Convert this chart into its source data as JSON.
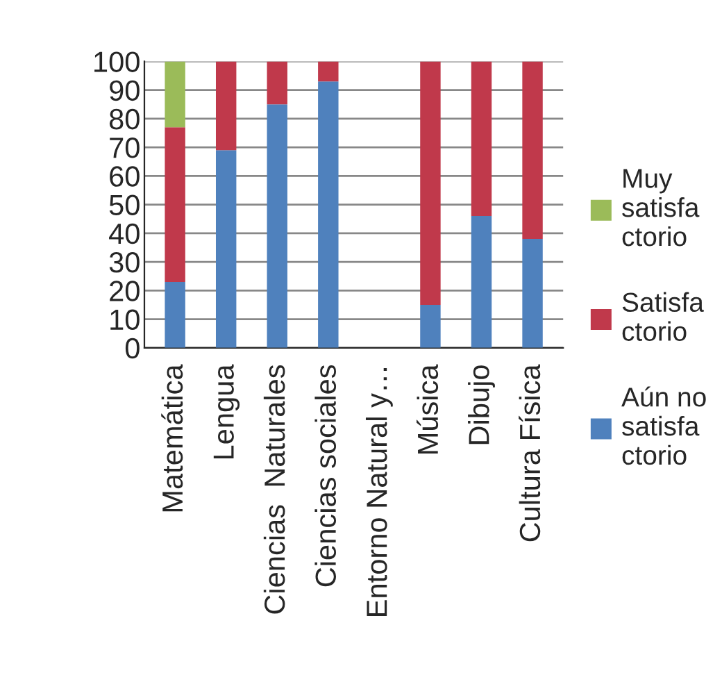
{
  "chart_data": {
    "type": "bar",
    "stacked": true,
    "categories": [
      "Matemática",
      "Lengua",
      "Ciencias  Naturales",
      "Ciencias sociales",
      "Entorno Natural y…",
      "Música",
      "Dibujo",
      "Cultura Física"
    ],
    "series": [
      {
        "name": "Aún no\nsatisfa\nctorio",
        "color": "#4f81bd",
        "values": [
          23,
          69,
          85,
          93,
          0,
          15,
          46,
          38
        ]
      },
      {
        "name": "Satisfa\nctorio",
        "color": "#c0394b",
        "values": [
          54,
          31,
          15,
          7,
          0,
          85,
          54,
          62
        ]
      },
      {
        "name": "Muy\nsatisfa\nctorio",
        "color": "#9bbb59",
        "values": [
          23,
          0,
          0,
          0,
          0,
          0,
          0,
          0
        ]
      }
    ],
    "ylim": [
      0,
      100
    ],
    "yticks": [
      0,
      10,
      20,
      30,
      40,
      50,
      60,
      70,
      80,
      90,
      100
    ],
    "grid": "y",
    "legend": "right"
  }
}
